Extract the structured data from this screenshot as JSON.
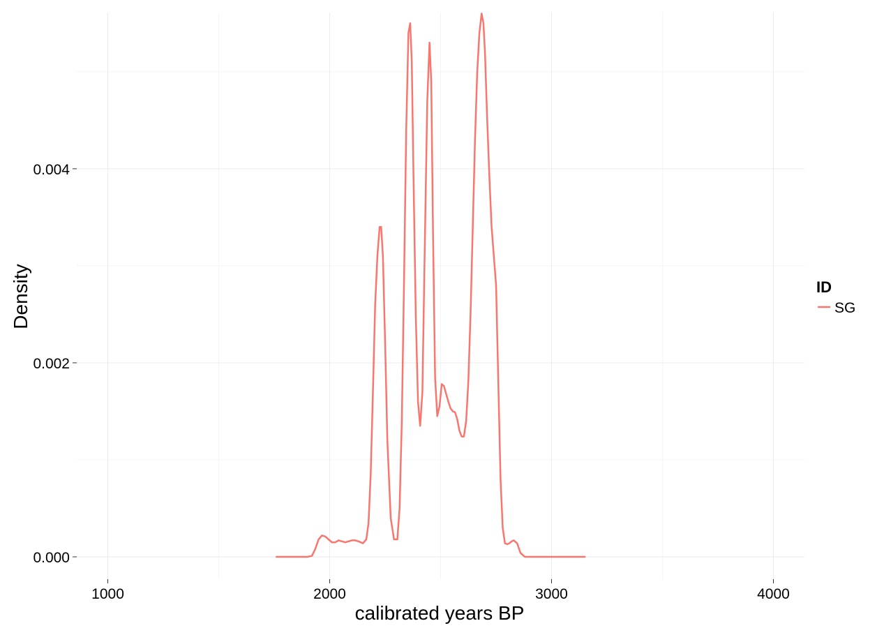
{
  "chart_data": {
    "type": "line",
    "xlabel": "calibrated years BP",
    "ylabel": "Density",
    "xlim": [
      860,
      4140
    ],
    "ylim": [
      -0.00023,
      0.00561
    ],
    "x_ticks": [
      1000,
      2000,
      3000,
      4000
    ],
    "x_tick_labels": [
      "1000",
      "2000",
      "3000",
      "4000"
    ],
    "x_minor_grid": [
      1500,
      2500,
      3500
    ],
    "y_ticks": [
      0.0,
      0.002,
      0.004
    ],
    "y_tick_labels": [
      "0.000",
      "0.002",
      "0.004"
    ],
    "y_minor_grid": [
      0.001,
      0.003,
      0.005
    ],
    "grid": true,
    "legend": {
      "title": "ID",
      "position": "right",
      "entries": [
        "SG"
      ]
    },
    "colors": {
      "SG": "#F8766D",
      "grid": "#ebebeb"
    },
    "series": [
      {
        "name": "SG",
        "x": [
          1760,
          1900,
          1920,
          1935,
          1950,
          1965,
          1980,
          1995,
          2010,
          2025,
          2040,
          2055,
          2070,
          2085,
          2100,
          2115,
          2130,
          2150,
          2165,
          2175,
          2185,
          2195,
          2205,
          2215,
          2225,
          2232,
          2240,
          2250,
          2260,
          2275,
          2290,
          2305,
          2315,
          2325,
          2335,
          2345,
          2355,
          2363,
          2370,
          2378,
          2388,
          2398,
          2408,
          2418,
          2428,
          2440,
          2450,
          2458,
          2466,
          2475,
          2485,
          2495,
          2505,
          2515,
          2525,
          2535,
          2545,
          2555,
          2565,
          2575,
          2585,
          2595,
          2605,
          2615,
          2625,
          2635,
          2645,
          2655,
          2665,
          2675,
          2685,
          2693,
          2700,
          2710,
          2720,
          2730,
          2740,
          2750,
          2760,
          2770,
          2780,
          2790,
          2800,
          2810,
          2820,
          2830,
          2845,
          2860,
          2880,
          3150
        ],
        "y": [
          0,
          0,
          1e-05,
          8e-05,
          0.00018,
          0.00022,
          0.00021,
          0.00018,
          0.00015,
          0.00015,
          0.00017,
          0.00016,
          0.00015,
          0.00016,
          0.00017,
          0.00017,
          0.00016,
          0.00014,
          0.00018,
          0.00035,
          0.00085,
          0.0017,
          0.0026,
          0.0031,
          0.0034,
          0.0034,
          0.0031,
          0.0022,
          0.0012,
          0.0004,
          0.00018,
          0.00018,
          0.0005,
          0.0014,
          0.0028,
          0.0044,
          0.0054,
          0.0055,
          0.0051,
          0.0039,
          0.0025,
          0.0016,
          0.00135,
          0.0017,
          0.0031,
          0.0047,
          0.0053,
          0.0049,
          0.0033,
          0.00185,
          0.00145,
          0.00155,
          0.00178,
          0.00176,
          0.00168,
          0.0016,
          0.00153,
          0.0015,
          0.00149,
          0.00142,
          0.0013,
          0.00124,
          0.00124,
          0.0014,
          0.0018,
          0.0025,
          0.0034,
          0.0043,
          0.005,
          0.0054,
          0.0056,
          0.0055,
          0.0052,
          0.0045,
          0.0039,
          0.0034,
          0.0031,
          0.0028,
          0.0018,
          0.0008,
          0.0003,
          0.00014,
          0.00013,
          0.00014,
          0.00016,
          0.00017,
          0.00014,
          4e-05,
          0,
          0
        ]
      }
    ]
  }
}
